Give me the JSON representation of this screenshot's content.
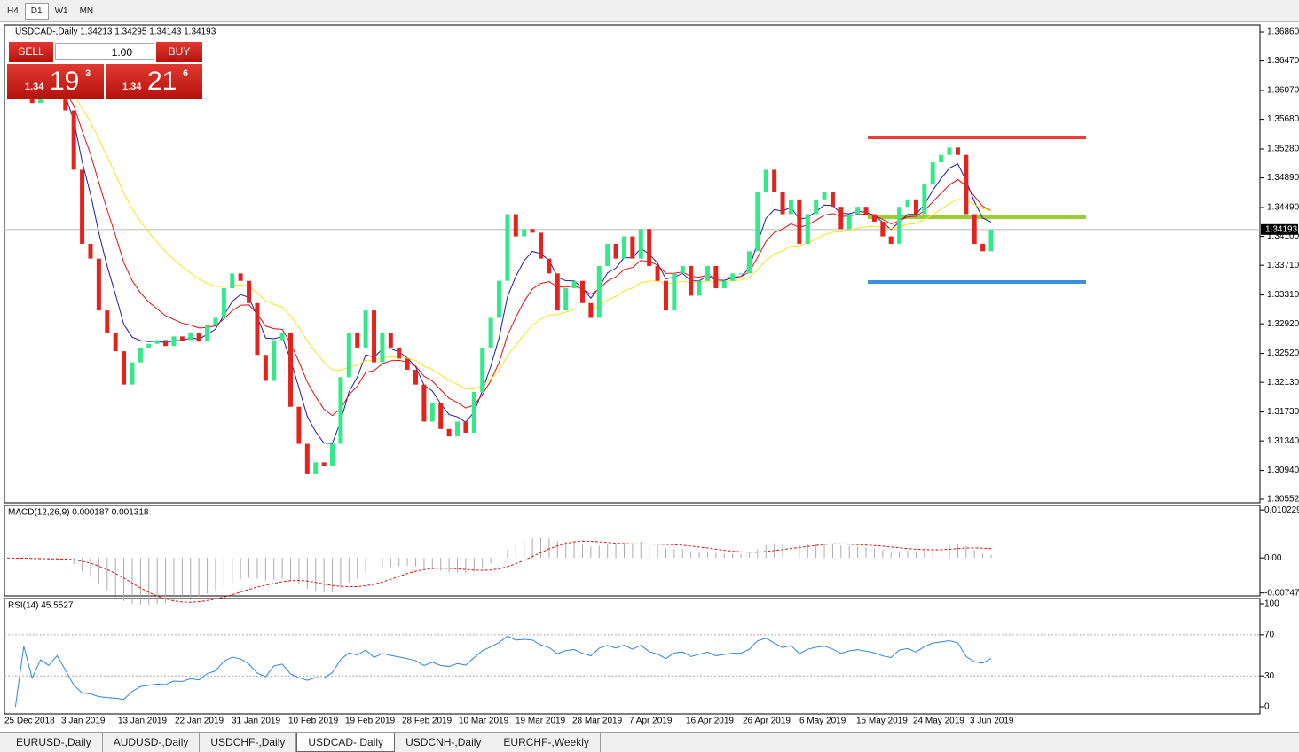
{
  "toolbar": {
    "timeframes": [
      "H4",
      "D1",
      "W1",
      "MN"
    ],
    "active": 1
  },
  "chart_data": {
    "type": "candlestick",
    "title": "USDCAD-,Daily 1.34213 1.34295 1.34143 1.34193",
    "closes": [
      1.362,
      1.3605,
      1.3625,
      1.359,
      1.361,
      1.36,
      1.3615,
      1.358,
      1.35,
      1.34,
      1.338,
      1.331,
      1.328,
      1.3255,
      1.321,
      1.324,
      1.326,
      1.3265,
      1.327,
      1.3262,
      1.3275,
      1.327,
      1.328,
      1.3268,
      1.329,
      1.33,
      1.334,
      1.336,
      1.335,
      1.332,
      1.325,
      1.3215,
      1.327,
      1.328,
      1.318,
      1.313,
      1.309,
      1.3105,
      1.31,
      1.313,
      1.322,
      1.328,
      1.326,
      1.331,
      1.324,
      1.328,
      1.326,
      1.3245,
      1.323,
      1.321,
      1.316,
      1.3185,
      1.315,
      1.314,
      1.316,
      1.3145,
      1.32,
      1.326,
      1.33,
      1.335,
      1.344,
      1.341,
      1.342,
      1.3415,
      1.338,
      1.336,
      1.331,
      1.334,
      1.335,
      1.332,
      1.33,
      1.337,
      1.34,
      1.338,
      1.341,
      1.338,
      1.342,
      1.337,
      1.335,
      1.331,
      1.336,
      1.337,
      1.333,
      1.335,
      1.337,
      1.334,
      1.335,
      1.336,
      1.336,
      1.339,
      1.347,
      1.35,
      1.347,
      1.344,
      1.346,
      1.34,
      1.344,
      1.346,
      1.347,
      1.345,
      1.342,
      1.344,
      1.345,
      1.344,
      1.343,
      1.341,
      1.34,
      1.345,
      1.346,
      1.344,
      1.348,
      1.351,
      1.352,
      1.353,
      1.352,
      1.344,
      1.34,
      1.339,
      1.3419
    ],
    "up_color": "#33e98a",
    "down_color": "#e3231d",
    "ylim": [
      1.30504,
      1.36956
    ],
    "yticks": [
      {
        "value": 1.3686,
        "label": "1.36860"
      },
      {
        "value": 1.3647,
        "label": "1.36470"
      },
      {
        "value": 1.3607,
        "label": "1.36070"
      },
      {
        "value": 1.3568,
        "label": "1.35680"
      },
      {
        "value": 1.3528,
        "label": "1.35280"
      },
      {
        "value": 1.3489,
        "label": "1.34890"
      },
      {
        "value": 1.3449,
        "label": "1.34490"
      },
      {
        "value": 1.341,
        "label": "1.34100"
      },
      {
        "value": 1.3371,
        "label": "1.33710"
      },
      {
        "value": 1.3331,
        "label": "1.33310"
      },
      {
        "value": 1.3292,
        "label": "1.32920"
      },
      {
        "value": 1.3252,
        "label": "1.32520"
      },
      {
        "value": 1.3213,
        "label": "1.32130"
      },
      {
        "value": 1.3173,
        "label": "1.31730"
      },
      {
        "value": 1.3134,
        "label": "1.31340"
      },
      {
        "value": 1.3094,
        "label": "1.30940"
      },
      {
        "value": 1.30552,
        "label": "1.30552"
      }
    ],
    "current_price": 1.34193,
    "levels": [
      {
        "value": 1.35436,
        "color": "#ee3b3b"
      },
      {
        "value": 1.34358,
        "color": "#9acd32"
      },
      {
        "value": 1.33485,
        "color": "#3d8fdb"
      }
    ],
    "x_labels": [
      "25 Dec 2018",
      "3 Jan 2019",
      "13 Jan 2019",
      "22 Jan 2019",
      "31 Jan 2019",
      "10 Feb 2019",
      "19 Feb 2019",
      "28 Feb 2019",
      "10 Mar 2019",
      "19 Mar 2019",
      "28 Mar 2019",
      "7 Apr 2019",
      "16 Apr 2019",
      "26 Apr 2019",
      "6 May 2019",
      "15 May 2019",
      "24 May 2019",
      "3 Jun 2019"
    ]
  },
  "trade_panel": {
    "sell": "SELL",
    "buy": "BUY",
    "lot": "1.00",
    "bid": [
      "1.34",
      "19",
      "3"
    ],
    "ask": [
      "1.34",
      "21",
      "6"
    ]
  },
  "macd": {
    "label": "MACD(12,26,9) 0.000187 0.001318",
    "ylim": [
      -0.0081,
      0.0112
    ],
    "yticks": [
      0.010229,
      {
        "value": 0,
        "label": "0.00"
      },
      -0.007477
    ]
  },
  "rsi": {
    "label": "RSI(14) 45.5527",
    "ylim": [
      -6.9,
      105.2
    ],
    "yticks": [
      100,
      70,
      30,
      0
    ],
    "levels": [
      70,
      30
    ]
  },
  "tabs": {
    "items": [
      "EURUSD-,Daily",
      "AUDUSD-,Daily",
      "USDCHF-,Daily",
      "USDCAD-,Daily",
      "USDCNH-,Daily",
      "EURCHF-,Weekly"
    ],
    "active": 3
  }
}
